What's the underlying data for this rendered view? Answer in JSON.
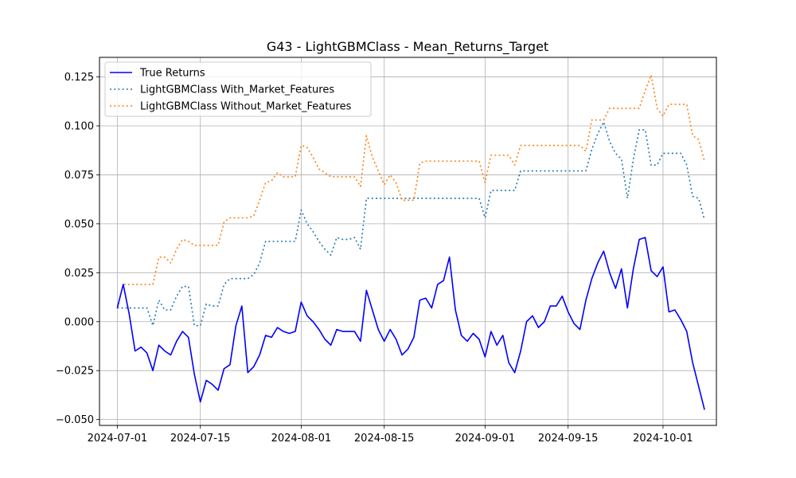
{
  "chart_data": {
    "type": "line",
    "title": "G43 - LightGBMClass - Mean_Returns_Target",
    "xlabel": "",
    "ylabel": "",
    "x_start": "2024-07-01",
    "x_end": "2024-10-07",
    "xlim": [
      "2024-06-28",
      "2024-10-10"
    ],
    "ylim": [
      -0.053,
      0.135
    ],
    "xticks": [
      "2024-07-01",
      "2024-07-15",
      "2024-08-01",
      "2024-08-15",
      "2024-09-01",
      "2024-09-15",
      "2024-10-01"
    ],
    "yticks": [
      "−0.050",
      "−0.025",
      "0.000",
      "0.025",
      "0.050",
      "0.075",
      "0.100",
      "0.125"
    ],
    "ytick_values": [
      -0.05,
      -0.025,
      0.0,
      0.025,
      0.05,
      0.075,
      0.1,
      0.125
    ],
    "grid": true,
    "legend_position": "top-left",
    "series": [
      {
        "name": "True Returns",
        "color": "#0000ff",
        "style": "solid",
        "values": [
          0.007,
          0.019,
          0.004,
          -0.015,
          -0.013,
          -0.016,
          -0.025,
          -0.012,
          -0.015,
          -0.017,
          -0.01,
          -0.005,
          -0.008,
          -0.027,
          -0.041,
          -0.03,
          -0.032,
          -0.035,
          -0.024,
          -0.022,
          -0.002,
          0.008,
          -0.026,
          -0.023,
          -0.017,
          -0.007,
          -0.008,
          -0.003,
          -0.005,
          -0.006,
          -0.005,
          0.01,
          0.003,
          0.0,
          -0.004,
          -0.009,
          -0.012,
          -0.004,
          -0.005,
          -0.005,
          -0.005,
          -0.01,
          0.016,
          0.006,
          -0.004,
          -0.01,
          -0.004,
          -0.009,
          -0.017,
          -0.014,
          -0.008,
          0.011,
          0.012,
          0.007,
          0.019,
          0.021,
          0.033,
          0.006,
          -0.007,
          -0.01,
          -0.006,
          -0.009,
          -0.018,
          -0.005,
          -0.012,
          -0.007,
          -0.021,
          -0.026,
          -0.015,
          0.0,
          0.003,
          -0.003,
          0.0,
          0.008,
          0.008,
          0.013,
          0.005,
          -0.001,
          -0.004,
          0.011,
          0.022,
          0.03,
          0.036,
          0.025,
          0.017,
          0.027,
          0.007,
          0.027,
          0.042,
          0.043,
          0.026,
          0.023,
          0.028,
          0.005,
          0.006,
          0.001,
          -0.005,
          -0.021,
          -0.033,
          -0.045
        ]
      },
      {
        "name": "LightGBMClass With_Market_Features",
        "color": "#1f77b4",
        "style": "dotted",
        "values": [
          0.007,
          0.007,
          0.007,
          0.007,
          0.007,
          0.007,
          -0.002,
          0.011,
          0.006,
          0.006,
          0.013,
          0.018,
          0.018,
          -0.002,
          -0.002,
          0.009,
          0.008,
          0.008,
          0.019,
          0.022,
          0.022,
          0.022,
          0.022,
          0.024,
          0.03,
          0.041,
          0.041,
          0.041,
          0.041,
          0.041,
          0.041,
          0.057,
          0.05,
          0.046,
          0.041,
          0.037,
          0.034,
          0.043,
          0.042,
          0.042,
          0.043,
          0.037,
          0.063,
          0.063,
          0.063,
          0.063,
          0.063,
          0.063,
          0.063,
          0.063,
          0.063,
          0.063,
          0.063,
          0.063,
          0.063,
          0.063,
          0.063,
          0.063,
          0.063,
          0.063,
          0.063,
          0.063,
          0.053,
          0.067,
          0.067,
          0.067,
          0.067,
          0.067,
          0.077,
          0.077,
          0.077,
          0.077,
          0.077,
          0.077,
          0.077,
          0.077,
          0.077,
          0.077,
          0.077,
          0.077,
          0.088,
          0.096,
          0.102,
          0.092,
          0.086,
          0.083,
          0.063,
          0.083,
          0.098,
          0.098,
          0.08,
          0.08,
          0.086,
          0.086,
          0.086,
          0.086,
          0.08,
          0.064,
          0.063,
          0.052
        ]
      },
      {
        "name": "LightGBMClass Without_Market_Features",
        "color": "#ff7f0e",
        "style": "dotted",
        "values": [
          0.007,
          0.019,
          0.019,
          0.019,
          0.019,
          0.019,
          0.019,
          0.033,
          0.033,
          0.03,
          0.037,
          0.042,
          0.041,
          0.039,
          0.039,
          0.039,
          0.039,
          0.039,
          0.051,
          0.053,
          0.053,
          0.053,
          0.053,
          0.054,
          0.062,
          0.071,
          0.072,
          0.076,
          0.074,
          0.074,
          0.074,
          0.09,
          0.089,
          0.084,
          0.078,
          0.076,
          0.074,
          0.074,
          0.074,
          0.074,
          0.074,
          0.069,
          0.095,
          0.084,
          0.077,
          0.07,
          0.075,
          0.071,
          0.062,
          0.062,
          0.062,
          0.081,
          0.082,
          0.082,
          0.082,
          0.082,
          0.082,
          0.082,
          0.082,
          0.082,
          0.082,
          0.082,
          0.071,
          0.085,
          0.085,
          0.085,
          0.085,
          0.08,
          0.09,
          0.09,
          0.09,
          0.09,
          0.09,
          0.09,
          0.09,
          0.09,
          0.09,
          0.09,
          0.09,
          0.087,
          0.103,
          0.103,
          0.103,
          0.109,
          0.109,
          0.109,
          0.109,
          0.109,
          0.109,
          0.118,
          0.126,
          0.109,
          0.105,
          0.111,
          0.111,
          0.111,
          0.111,
          0.095,
          0.093,
          0.082
        ]
      }
    ]
  }
}
